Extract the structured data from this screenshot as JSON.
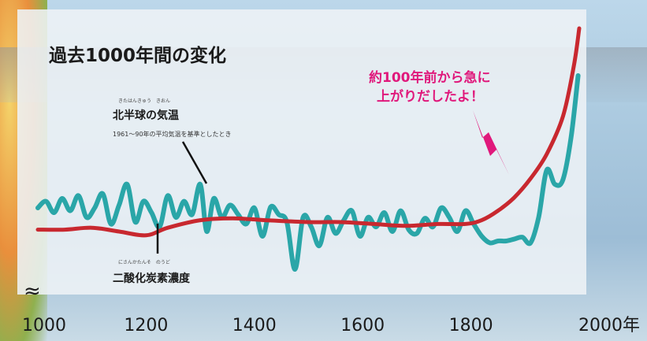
{
  "chart_data": {
    "type": "line",
    "title": "過去1000年間の変化",
    "annotation": "約100年前から急に\n上がりだしたよ！",
    "xlim": [
      1000,
      2000
    ],
    "x_ticks": [
      "1000",
      "1200",
      "1400",
      "1600",
      "1800",
      "2000年"
    ],
    "grid": false,
    "series": [
      {
        "name": "北半球の気温",
        "ruby": "きたはんきゅう　きおん",
        "note": "1961～90年の平均気温を基準としたとき",
        "color": "#2aa6a8",
        "points": [
          [
            1000,
            0.05
          ],
          [
            1015,
            0.12
          ],
          [
            1030,
            0.0
          ],
          [
            1045,
            0.15
          ],
          [
            1060,
            0.02
          ],
          [
            1075,
            0.18
          ],
          [
            1090,
            -0.05
          ],
          [
            1105,
            0.05
          ],
          [
            1120,
            0.2
          ],
          [
            1135,
            -0.12
          ],
          [
            1150,
            0.08
          ],
          [
            1165,
            0.3
          ],
          [
            1180,
            -0.1
          ],
          [
            1195,
            0.12
          ],
          [
            1210,
            0.0
          ],
          [
            1225,
            -0.15
          ],
          [
            1240,
            0.18
          ],
          [
            1255,
            -0.05
          ],
          [
            1270,
            0.12
          ],
          [
            1285,
            -0.02
          ],
          [
            1300,
            0.3
          ],
          [
            1312,
            -0.2
          ],
          [
            1325,
            0.15
          ],
          [
            1340,
            -0.05
          ],
          [
            1355,
            0.08
          ],
          [
            1370,
            -0.02
          ],
          [
            1385,
            -0.12
          ],
          [
            1400,
            0.05
          ],
          [
            1415,
            -0.25
          ],
          [
            1430,
            0.06
          ],
          [
            1445,
            -0.02
          ],
          [
            1460,
            -0.1
          ],
          [
            1475,
            -0.6
          ],
          [
            1490,
            -0.05
          ],
          [
            1505,
            -0.15
          ],
          [
            1520,
            -0.35
          ],
          [
            1535,
            -0.05
          ],
          [
            1550,
            -0.22
          ],
          [
            1565,
            -0.08
          ],
          [
            1580,
            0.02
          ],
          [
            1595,
            -0.25
          ],
          [
            1610,
            -0.05
          ],
          [
            1625,
            -0.15
          ],
          [
            1640,
            0.0
          ],
          [
            1655,
            -0.2
          ],
          [
            1670,
            0.02
          ],
          [
            1685,
            -0.18
          ],
          [
            1700,
            -0.22
          ],
          [
            1715,
            -0.06
          ],
          [
            1730,
            -0.15
          ],
          [
            1745,
            0.05
          ],
          [
            1760,
            -0.05
          ],
          [
            1775,
            -0.2
          ],
          [
            1790,
            0.02
          ],
          [
            1805,
            -0.12
          ],
          [
            1820,
            -0.25
          ],
          [
            1835,
            -0.32
          ],
          [
            1850,
            -0.3
          ],
          [
            1865,
            -0.3
          ],
          [
            1880,
            -0.28
          ],
          [
            1895,
            -0.26
          ],
          [
            1910,
            -0.32
          ],
          [
            1925,
            -0.05
          ],
          [
            1940,
            0.45
          ],
          [
            1955,
            0.3
          ],
          [
            1970,
            0.35
          ],
          [
            1985,
            0.8
          ],
          [
            1998,
            1.45
          ]
        ]
      },
      {
        "name": "二酸化炭素濃度",
        "ruby": "にさんかたんそ　のうど",
        "color": "#c8282f",
        "points": [
          [
            1000,
            -0.18
          ],
          [
            1050,
            -0.18
          ],
          [
            1100,
            -0.16
          ],
          [
            1150,
            -0.2
          ],
          [
            1200,
            -0.24
          ],
          [
            1240,
            -0.16
          ],
          [
            1300,
            -0.08
          ],
          [
            1360,
            -0.06
          ],
          [
            1420,
            -0.08
          ],
          [
            1500,
            -0.1
          ],
          [
            1560,
            -0.1
          ],
          [
            1620,
            -0.12
          ],
          [
            1680,
            -0.14
          ],
          [
            1740,
            -0.12
          ],
          [
            1790,
            -0.12
          ],
          [
            1820,
            -0.08
          ],
          [
            1850,
            0.02
          ],
          [
            1880,
            0.16
          ],
          [
            1910,
            0.36
          ],
          [
            1940,
            0.62
          ],
          [
            1970,
            1.02
          ],
          [
            1990,
            1.55
          ],
          [
            2000,
            1.95
          ]
        ]
      }
    ]
  }
}
